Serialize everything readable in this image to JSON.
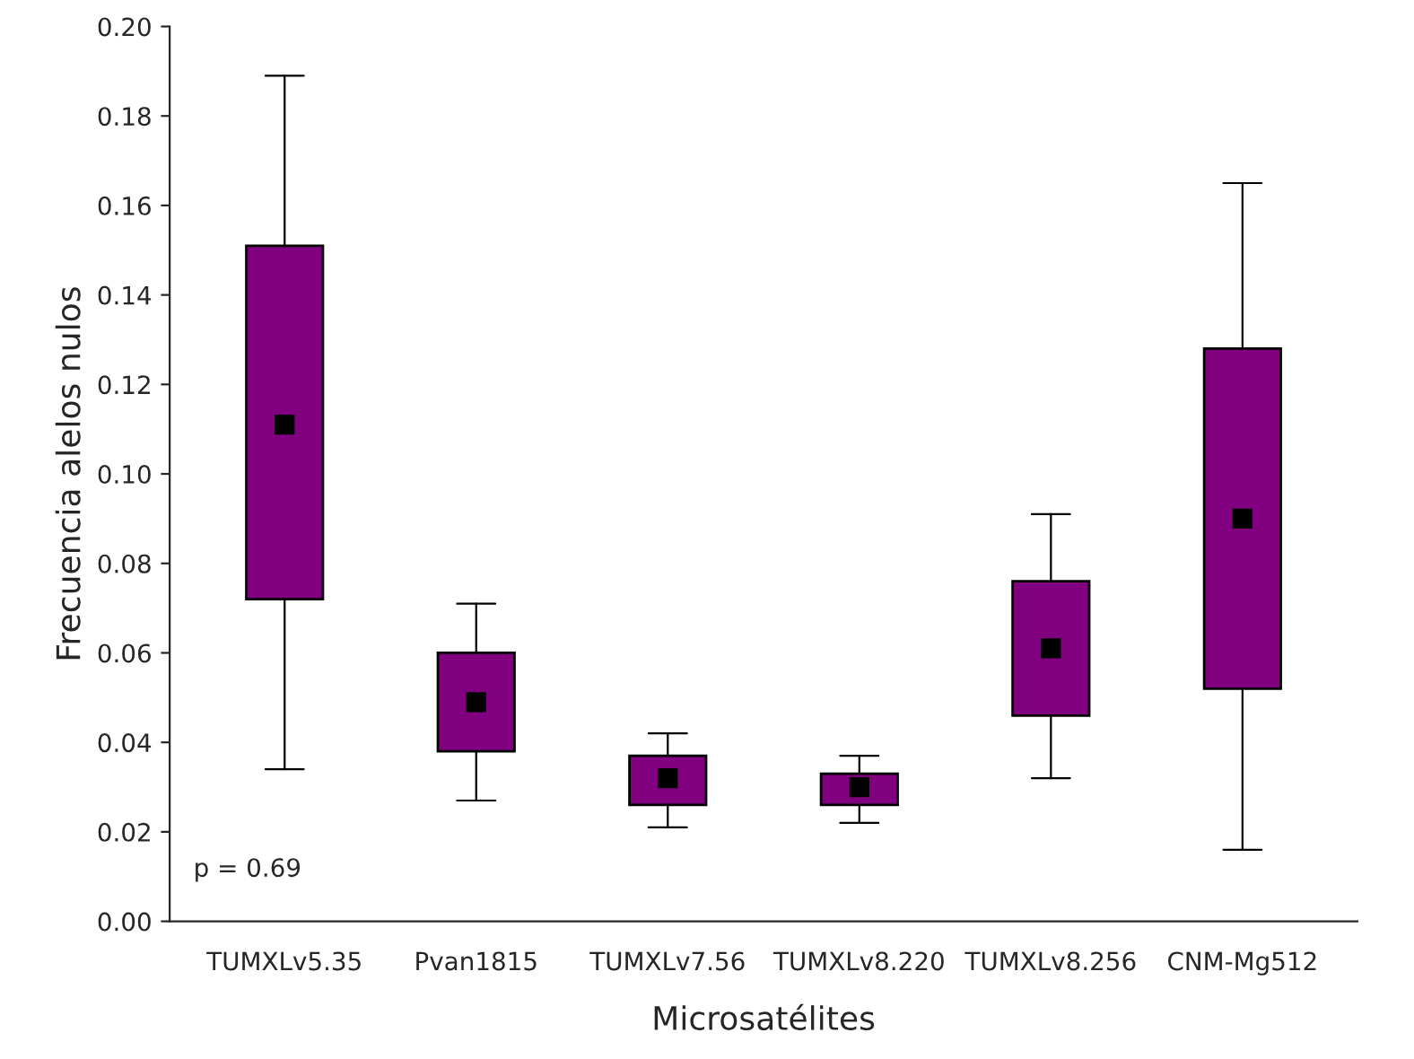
{
  "chart_data": {
    "type": "box",
    "xlabel": "Microsatélites",
    "ylabel": "Frecuencia alelos nulos",
    "categories": [
      "TUMXLv5.35",
      "Pvan1815",
      "TUMXLv7.56",
      "TUMXLv8.220",
      "TUMXLv8.256",
      "CNM-Mg512"
    ],
    "color": "#800080",
    "marker": "square",
    "boxes": [
      {
        "low": 0.034,
        "q1": 0.072,
        "median": 0.111,
        "q3": 0.151,
        "high": 0.189
      },
      {
        "low": 0.027,
        "q1": 0.038,
        "median": 0.049,
        "q3": 0.06,
        "high": 0.071
      },
      {
        "low": 0.021,
        "q1": 0.026,
        "median": 0.032,
        "q3": 0.037,
        "high": 0.042
      },
      {
        "low": 0.022,
        "q1": 0.026,
        "median": 0.03,
        "q3": 0.033,
        "high": 0.037
      },
      {
        "low": 0.032,
        "q1": 0.046,
        "median": 0.061,
        "q3": 0.076,
        "high": 0.091
      },
      {
        "low": 0.016,
        "q1": 0.052,
        "median": 0.09,
        "q3": 0.128,
        "high": 0.165
      }
    ],
    "ylim": [
      0,
      0.2
    ],
    "yticks": [
      {
        "value": 0,
        "label": "0.00"
      },
      {
        "value": 0.02,
        "label": "0.02"
      },
      {
        "value": 0.04,
        "label": "0.04"
      },
      {
        "value": 0.06,
        "label": "0.06"
      },
      {
        "value": 0.08,
        "label": "0.08"
      },
      {
        "value": 0.1,
        "label": "0.10"
      },
      {
        "value": 0.12,
        "label": "0.12"
      },
      {
        "value": 0.14,
        "label": "0.14"
      },
      {
        "value": 0.16,
        "label": "0.16"
      },
      {
        "value": 0.18,
        "label": "0.18"
      },
      {
        "value": 0.2,
        "label": "0.20"
      }
    ],
    "grid": false,
    "annotations": [
      "p = 0.69"
    ]
  }
}
